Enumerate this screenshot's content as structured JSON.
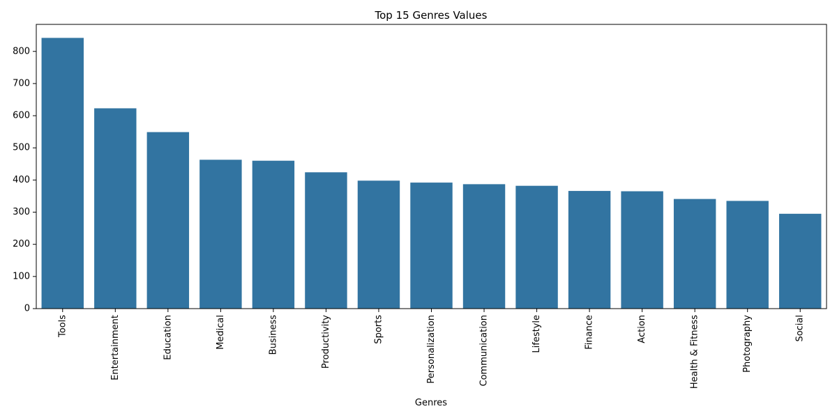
{
  "chart_data": {
    "type": "bar",
    "title": "Top 15 Genres Values",
    "xlabel": "Genres",
    "ylabel": "",
    "categories": [
      "Tools",
      "Entertainment",
      "Education",
      "Medical",
      "Business",
      "Productivity",
      "Sports",
      "Personalization",
      "Communication",
      "Lifestyle",
      "Finance",
      "Action",
      "Health & Fitness",
      "Photography",
      "Social"
    ],
    "values": [
      842,
      623,
      549,
      463,
      460,
      424,
      398,
      392,
      387,
      382,
      366,
      365,
      341,
      335,
      295
    ],
    "ylim": [
      0,
      884
    ],
    "yticks": [
      0,
      100,
      200,
      300,
      400,
      500,
      600,
      700,
      800
    ],
    "grid": false,
    "bar_color": "#3274a1",
    "legend": "none"
  }
}
